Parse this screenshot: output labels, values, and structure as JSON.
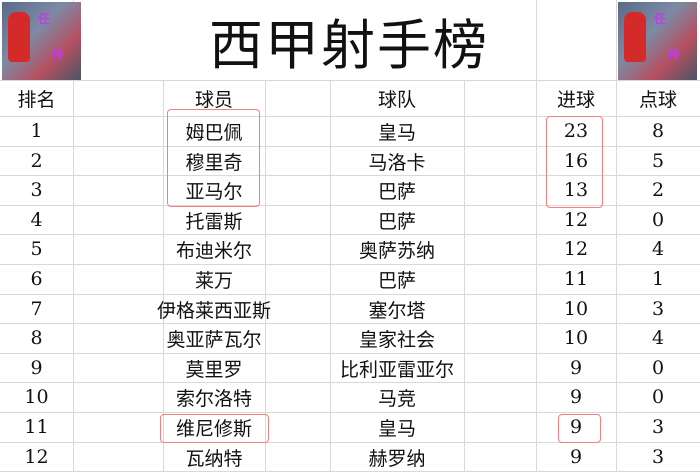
{
  "title": "西甲射手榜",
  "headers": {
    "rank": "排名",
    "player": "球员",
    "team": "球队",
    "goals": "进球",
    "penalties": "点球"
  },
  "rows": [
    {
      "rank": "1",
      "player": "姆巴佩",
      "team": "皇马",
      "goals": "23",
      "penalties": "8"
    },
    {
      "rank": "2",
      "player": "穆里奇",
      "team": "马洛卡",
      "goals": "16",
      "penalties": "5"
    },
    {
      "rank": "3",
      "player": "亚马尔",
      "team": "巴萨",
      "goals": "13",
      "penalties": "2"
    },
    {
      "rank": "4",
      "player": "托雷斯",
      "team": "巴萨",
      "goals": "12",
      "penalties": "0"
    },
    {
      "rank": "5",
      "player": "布迪米尔",
      "team": "奥萨苏纳",
      "goals": "12",
      "penalties": "4"
    },
    {
      "rank": "6",
      "player": "莱万",
      "team": "巴萨",
      "goals": "11",
      "penalties": "1"
    },
    {
      "rank": "7",
      "player": "伊格莱西亚斯",
      "team": "塞尔塔",
      "goals": "10",
      "penalties": "3"
    },
    {
      "rank": "8",
      "player": "奥亚萨瓦尔",
      "team": "皇家社会",
      "goals": "10",
      "penalties": "4"
    },
    {
      "rank": "9",
      "player": "莫里罗",
      "team": "比利亚雷亚尔",
      "goals": "9",
      "penalties": "0"
    },
    {
      "rank": "10",
      "player": "索尔洛特",
      "team": "马竞",
      "goals": "9",
      "penalties": "0"
    },
    {
      "rank": "11",
      "player": "维尼修斯",
      "team": "皇马",
      "goals": "9",
      "penalties": "3"
    },
    {
      "rank": "12",
      "player": "瓦纳特",
      "team": "赫罗纳",
      "goals": "9",
      "penalties": "3"
    }
  ],
  "highlight_color": "#f08080"
}
